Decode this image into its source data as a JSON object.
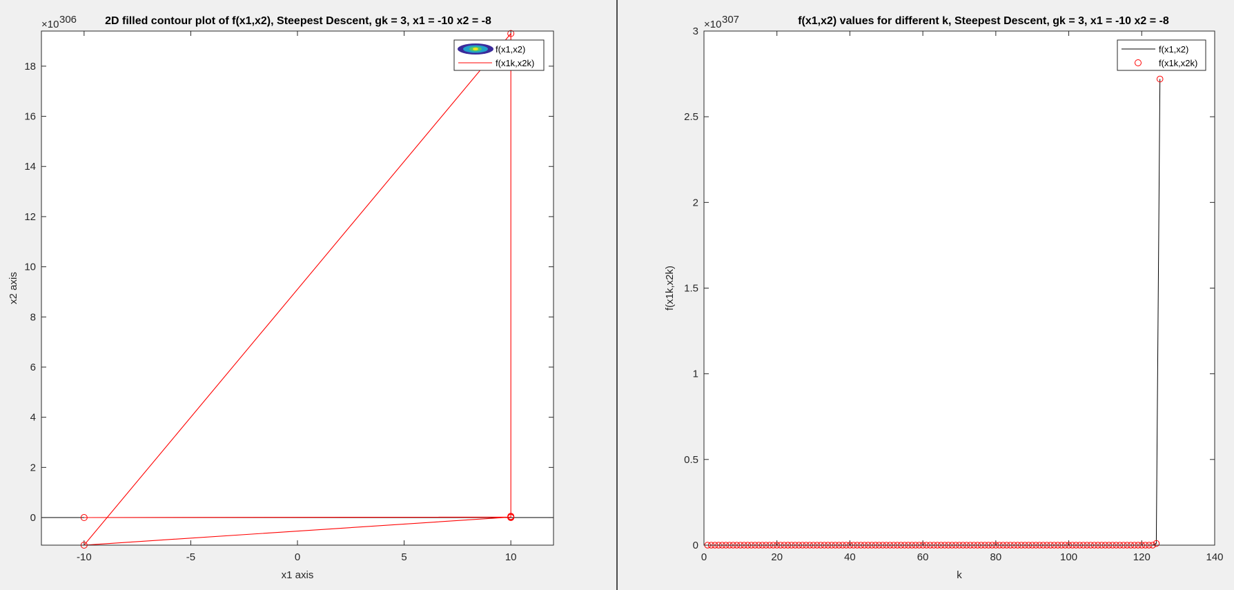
{
  "chart_data": [
    {
      "type": "contour-with-line",
      "title": "2D filled contour plot of f(x1,x2), Steepest Descent, gk = 3, x1 = -10 x2 = -8",
      "xlabel": "x1 axis",
      "ylabel": "x2 axis",
      "xlim": [
        -12,
        12
      ],
      "ylim": [
        -1.1,
        19.4
      ],
      "x_ticks": [
        -10,
        -5,
        0,
        5,
        10
      ],
      "x_tick_labels": [
        "-10",
        "-5",
        "0",
        "5",
        "10"
      ],
      "y_ticks": [
        0,
        2,
        4,
        6,
        8,
        10,
        12,
        14,
        16,
        18
      ],
      "y_tick_labels": [
        "0",
        "2",
        "4",
        "6",
        "8",
        "10",
        "12",
        "14",
        "16",
        "18"
      ],
      "exponent_base": "×10",
      "exponent_power": "306",
      "grid": false,
      "legend_position": "top-right",
      "legend": [
        {
          "name": "f(x1,x2)",
          "kind": "contour-patch"
        },
        {
          "name": "f(x1k,x2k)",
          "kind": "line",
          "color": "#ff0000"
        }
      ],
      "reference_line": {
        "y": 0,
        "color": "#000000"
      },
      "series": [
        {
          "name": "f(x1k,x2k)",
          "color": "#ff0000",
          "x": [
            -10,
            10,
            -10,
            10,
            10,
            10
          ],
          "y": [
            0,
            0.02,
            -1.1,
            19.3,
            0.05,
            0.0
          ]
        }
      ]
    },
    {
      "type": "line",
      "title": "f(x1,x2) values for different k, Steepest Descent, gk = 3, x1 = -10 x2 = -8",
      "xlabel": "k",
      "ylabel": "f(x1k,x2k)",
      "xlim": [
        0,
        140
      ],
      "ylim": [
        0,
        3
      ],
      "x_ticks": [
        0,
        20,
        40,
        60,
        80,
        100,
        120,
        140
      ],
      "x_tick_labels": [
        "0",
        "20",
        "40",
        "60",
        "80",
        "100",
        "120",
        "140"
      ],
      "y_ticks": [
        0,
        0.5,
        1,
        1.5,
        2,
        2.5,
        3
      ],
      "y_tick_labels": [
        "0",
        "0.5",
        "1",
        "1.5",
        "2",
        "2.5",
        "3"
      ],
      "exponent_base": "×10",
      "exponent_power": "307",
      "grid": false,
      "legend_position": "top-right",
      "legend": [
        {
          "name": "f(x1,x2)",
          "kind": "line",
          "color": "#000000"
        },
        {
          "name": "f(x1k,x2k)",
          "kind": "marker-circle",
          "color": "#ff0000"
        }
      ],
      "series": [
        {
          "name": "f(x1k,x2k)",
          "line_color": "#000000",
          "marker_color": "#ff0000",
          "k_start": 1,
          "k_end": 125,
          "values": {
            "1-123": 0,
            "124": 0.01,
            "125": 2.72
          }
        }
      ]
    }
  ]
}
